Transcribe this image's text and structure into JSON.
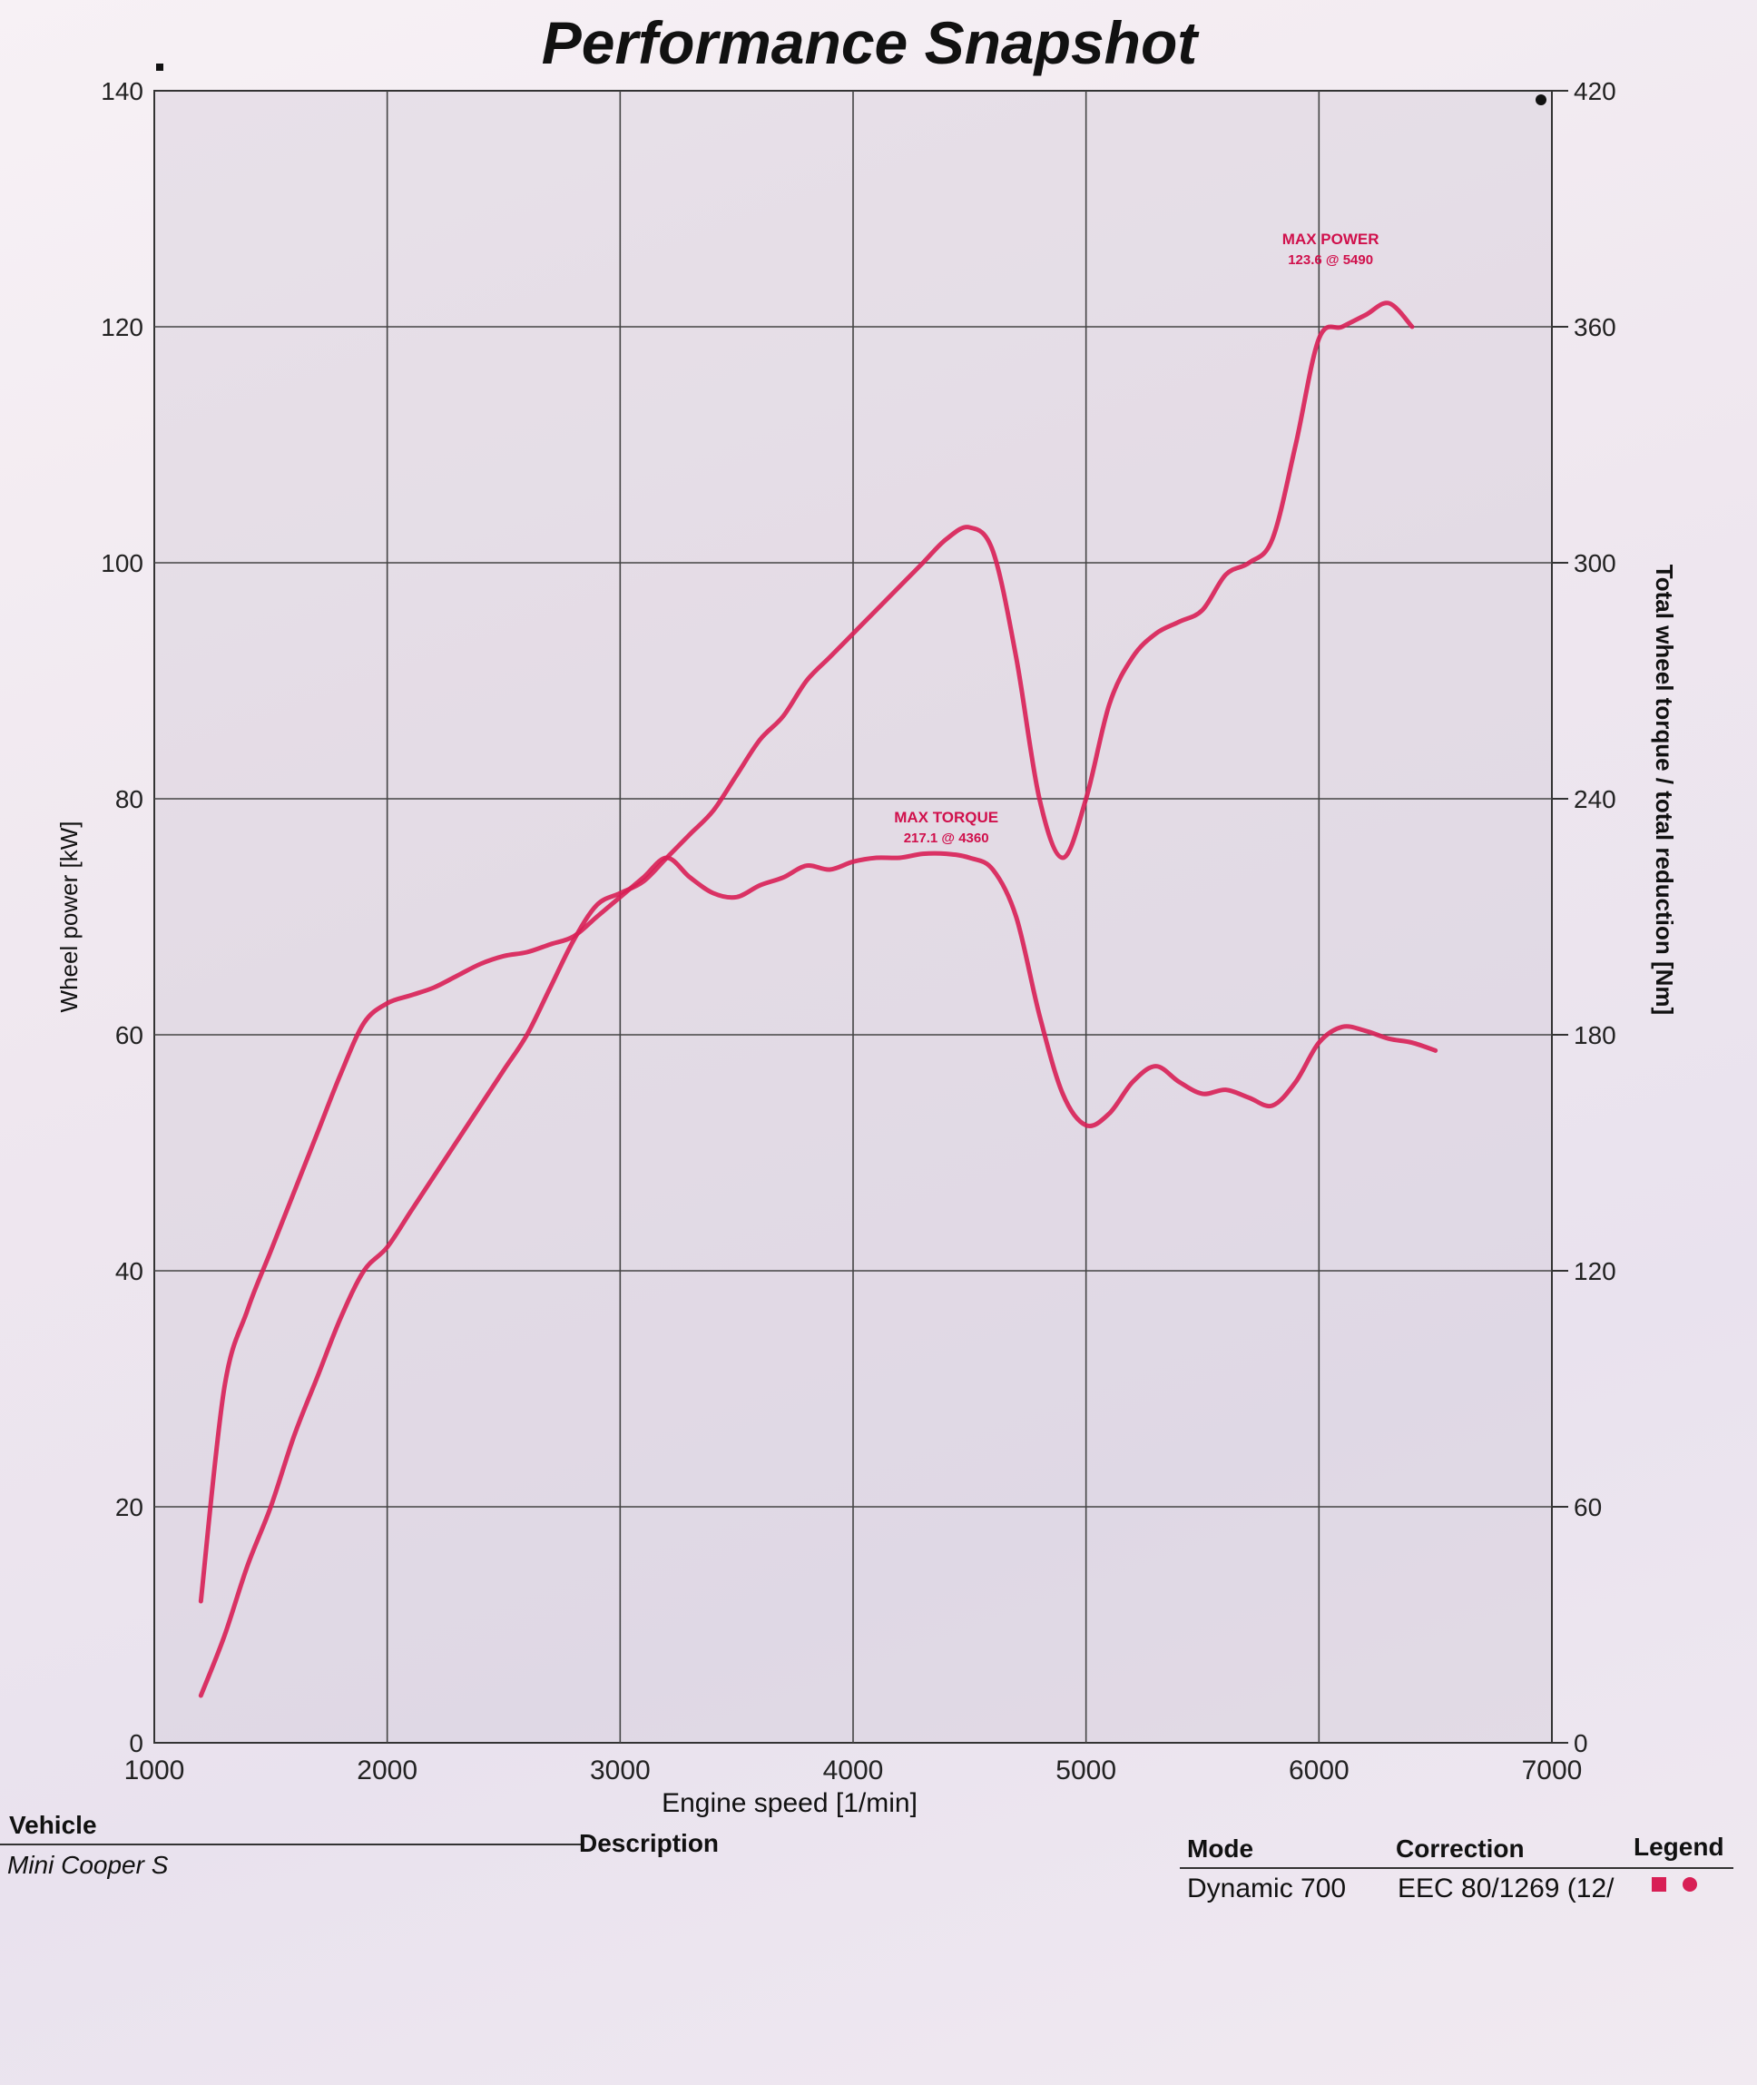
{
  "chart_data": {
    "type": "line",
    "title": "Performance Snapshot",
    "xlabel": "Engine speed [1/min]",
    "ylabel": "Wheel power [kW]",
    "y2label": "Total wheel torque / total reduction [Nm]",
    "xlim": [
      1000,
      7000
    ],
    "ylim": [
      0,
      140
    ],
    "y2lim": [
      0,
      420
    ],
    "x_ticks": [
      "1000",
      "2000",
      "3000",
      "4000",
      "5000",
      "6000",
      "7000"
    ],
    "y_ticks": [
      "0",
      "20",
      "40",
      "60",
      "80",
      "100",
      "120",
      "140"
    ],
    "y2_ticks": [
      "0",
      "60",
      "120",
      "180",
      "240",
      "300",
      "360",
      "420"
    ],
    "grid": true,
    "line_color": "#d81f55",
    "series": [
      {
        "axis": "left",
        "x": [
          1200,
          1300,
          1400,
          1500,
          1600,
          1700,
          1800,
          1900,
          2000,
          2100,
          2200,
          2300,
          2400,
          2500,
          2600,
          2700,
          2800,
          2900,
          3000,
          3100,
          3200,
          3300,
          3400,
          3500,
          3600,
          3700,
          3800,
          3900,
          4000,
          4100,
          4200,
          4300,
          4400,
          4500,
          4600,
          4700,
          4800,
          4900,
          5000,
          5100,
          5200,
          5300,
          5400,
          5500,
          5600,
          5700,
          5800,
          5900,
          6000,
          6100,
          6200,
          6300,
          6400
        ],
        "values": [
          4,
          9,
          15,
          20,
          26,
          31,
          36,
          40,
          42,
          45,
          48,
          51,
          54,
          57,
          60,
          64,
          68,
          71,
          72,
          73,
          75,
          77,
          79,
          82,
          85,
          87,
          90,
          92,
          94,
          96,
          98,
          100,
          102,
          103,
          101,
          92,
          80,
          75,
          80,
          88,
          92,
          94,
          95,
          96,
          99,
          100,
          102,
          110,
          119,
          120,
          121,
          122,
          120
        ]
      },
      {
        "axis": "right",
        "x": [
          1200,
          1300,
          1400,
          1500,
          1600,
          1700,
          1800,
          1900,
          2000,
          2100,
          2200,
          2300,
          2400,
          2500,
          2600,
          2700,
          2800,
          2900,
          3000,
          3100,
          3200,
          3300,
          3400,
          3500,
          3600,
          3700,
          3800,
          3900,
          4000,
          4100,
          4200,
          4300,
          4400,
          4500,
          4600,
          4700,
          4800,
          4900,
          5000,
          5100,
          5200,
          5300,
          5400,
          5500,
          5600,
          5700,
          5800,
          5900,
          6000,
          6100,
          6200,
          6300,
          6400,
          6500
        ],
        "values": [
          36,
          90,
          110,
          125,
          140,
          155,
          170,
          183,
          188,
          190,
          192,
          195,
          198,
          200,
          201,
          203,
          205,
          210,
          215,
          220,
          225,
          220,
          216,
          215,
          218,
          220,
          223,
          222,
          224,
          225,
          225,
          226,
          226,
          225,
          222,
          210,
          185,
          165,
          157,
          160,
          168,
          172,
          168,
          165,
          166,
          164,
          162,
          168,
          178,
          182,
          181,
          179,
          178,
          176
        ]
      }
    ],
    "annotations": [
      {
        "lines": [
          "MAX POWER",
          "123.6 @ 5490"
        ],
        "x": 6050,
        "y": 127
      },
      {
        "lines": [
          "MAX TORQUE",
          "217.1 @ 4360"
        ],
        "x": 4400,
        "y": 78
      }
    ]
  },
  "footer": {
    "vehicle_label": "Vehicle",
    "vehicle_value": "Mini Cooper S",
    "description_label": "Description",
    "mode_label": "Mode",
    "mode_value": "Dynamic 700",
    "correction_label": "Correction",
    "correction_value": "EEC 80/1269 (12/",
    "legend_label": "Legend"
  }
}
